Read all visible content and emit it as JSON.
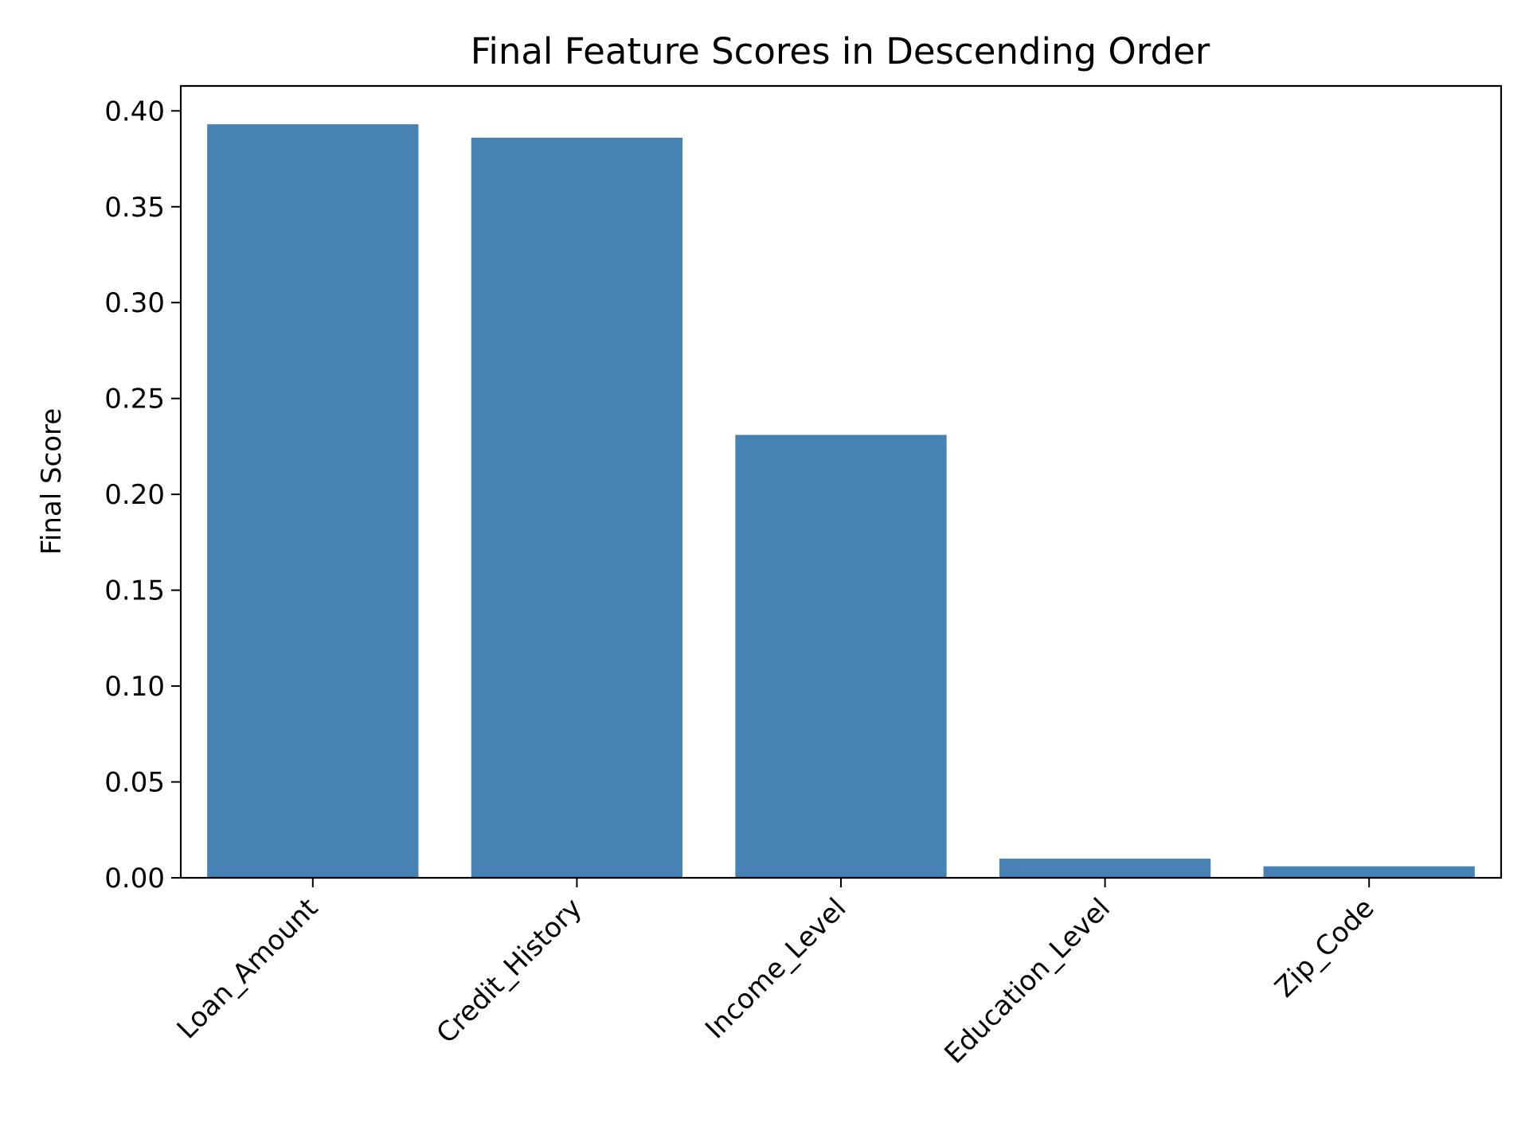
{
  "chart_data": {
    "type": "bar",
    "title": "Final Feature Scores in Descending Order",
    "xlabel": "",
    "ylabel": "Final Score",
    "categories": [
      "Loan_Amount",
      "Credit_History",
      "Income_Level",
      "Education_Level",
      "Zip_Code"
    ],
    "values": [
      0.393,
      0.386,
      0.231,
      0.01,
      0.006
    ],
    "ylim": [
      0,
      0.413
    ],
    "yticks": [
      0.0,
      0.05,
      0.1,
      0.15,
      0.2,
      0.25,
      0.3,
      0.35,
      0.4
    ],
    "ytick_labels": [
      "0.00",
      "0.05",
      "0.10",
      "0.15",
      "0.20",
      "0.25",
      "0.30",
      "0.35",
      "0.40"
    ],
    "xtick_rotation_deg": 45,
    "grid": false,
    "legend": "none",
    "bar_color": "#4682b4"
  }
}
